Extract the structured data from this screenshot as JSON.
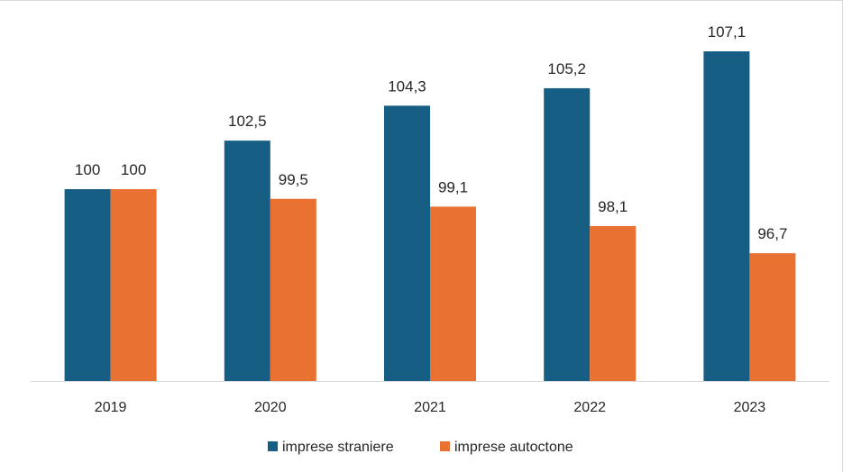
{
  "chart_data": {
    "type": "bar",
    "categories": [
      "2019",
      "2020",
      "2021",
      "2022",
      "2023"
    ],
    "series": [
      {
        "name": "imprese straniere",
        "color": "#165e83",
        "values": [
          100,
          102.5,
          104.3,
          105.2,
          107.1
        ],
        "labels": [
          "100",
          "102,5",
          "104,3",
          "105,2",
          "107,1"
        ]
      },
      {
        "name": "imprese autoctone",
        "color": "#e97132",
        "values": [
          100,
          99.5,
          99.1,
          98.1,
          96.7
        ],
        "labels": [
          "100",
          "99,5",
          "99,1",
          "98,1",
          "96,7"
        ]
      }
    ],
    "title": "",
    "xlabel": "",
    "ylabel": "",
    "grid": false,
    "legend": "bottom",
    "axis_color": "#d9d9d9"
  }
}
